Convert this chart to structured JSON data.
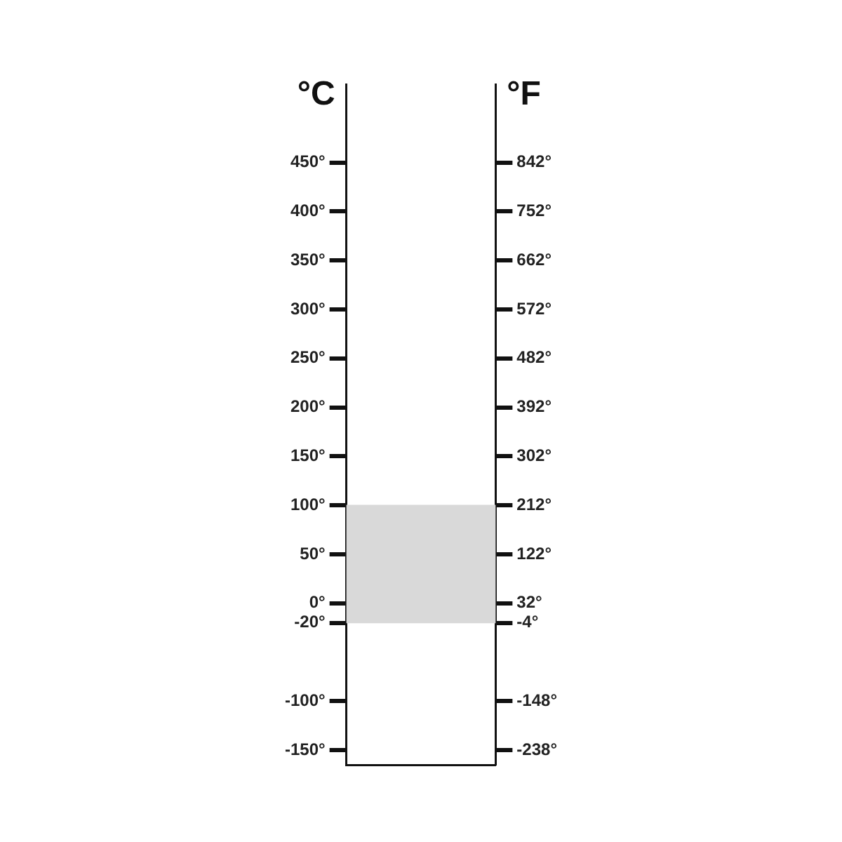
{
  "chart_data": {
    "type": "bar",
    "ylabel": "°C",
    "y2label": "°F",
    "categories": [
      null
    ],
    "base": [
      -20
    ],
    "values": [
      120
    ],
    "color": "#d9d9d9",
    "ylim": [
      -165,
      530
    ],
    "yticks": [
      {
        "value": -150,
        "label": "-150°"
      },
      {
        "value": -100,
        "label": "-100°"
      },
      {
        "value": -20,
        "label": "-20°"
      },
      {
        "value": 0,
        "label": "0°"
      },
      {
        "value": 50,
        "label": "50°"
      },
      {
        "value": 100,
        "label": "100°"
      },
      {
        "value": 150,
        "label": "150°"
      },
      {
        "value": 200,
        "label": "200°"
      },
      {
        "value": 250,
        "label": "250°"
      },
      {
        "value": 300,
        "label": "300°"
      },
      {
        "value": 350,
        "label": "350°"
      },
      {
        "value": 400,
        "label": "400°"
      },
      {
        "value": 450,
        "label": "450°"
      }
    ],
    "y2lim": [
      -265,
      986
    ],
    "y2ticks": [
      {
        "value": -238,
        "label": "-238°"
      },
      {
        "value": -148,
        "label": "-148°"
      },
      {
        "value": -4,
        "label": "-4°"
      },
      {
        "value": 32,
        "label": "32°"
      },
      {
        "value": 122,
        "label": "122°"
      },
      {
        "value": 212,
        "label": "212°"
      },
      {
        "value": 302,
        "label": "302°"
      },
      {
        "value": 392,
        "label": "392°"
      },
      {
        "value": 482,
        "label": "482°"
      },
      {
        "value": 572,
        "label": "572°"
      },
      {
        "value": 662,
        "label": "662°"
      },
      {
        "value": 752,
        "label": "752°"
      },
      {
        "value": 842,
        "label": "842°"
      }
    ],
    "grid": false,
    "legend": false
  }
}
